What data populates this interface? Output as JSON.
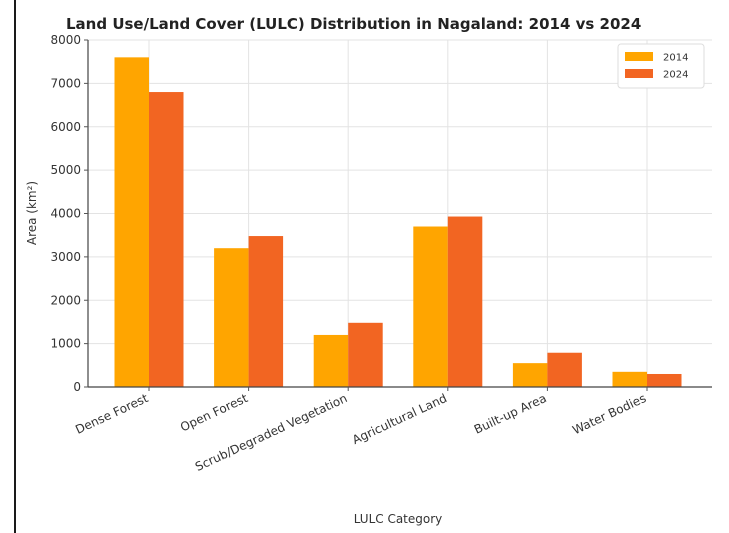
{
  "chart_data": {
    "type": "bar",
    "title": "Land Use/Land Cover (LULC) Distribution in Nagaland: 2014 vs 2024",
    "xlabel": "LULC Category",
    "ylabel": "Area (km²)",
    "categories": [
      "Dense Forest",
      "Open Forest",
      "Scrub/Degraded Vegetation",
      "Agricultural Land",
      "Built-up Area",
      "Water Bodies"
    ],
    "series": [
      {
        "name": "2014",
        "color": "#ffa500",
        "values": [
          7600,
          3200,
          1200,
          3700,
          550,
          350
        ]
      },
      {
        "name": "2024",
        "color": "#f26522",
        "values": [
          6800,
          3480,
          1480,
          3930,
          790,
          300
        ]
      }
    ],
    "ylim": [
      0,
      8000
    ],
    "yticks": [
      "0",
      "1000",
      "2000",
      "3000",
      "4000",
      "5000",
      "6000",
      "7000",
      "8000"
    ],
    "grid": true,
    "legend_position": "top-right"
  }
}
